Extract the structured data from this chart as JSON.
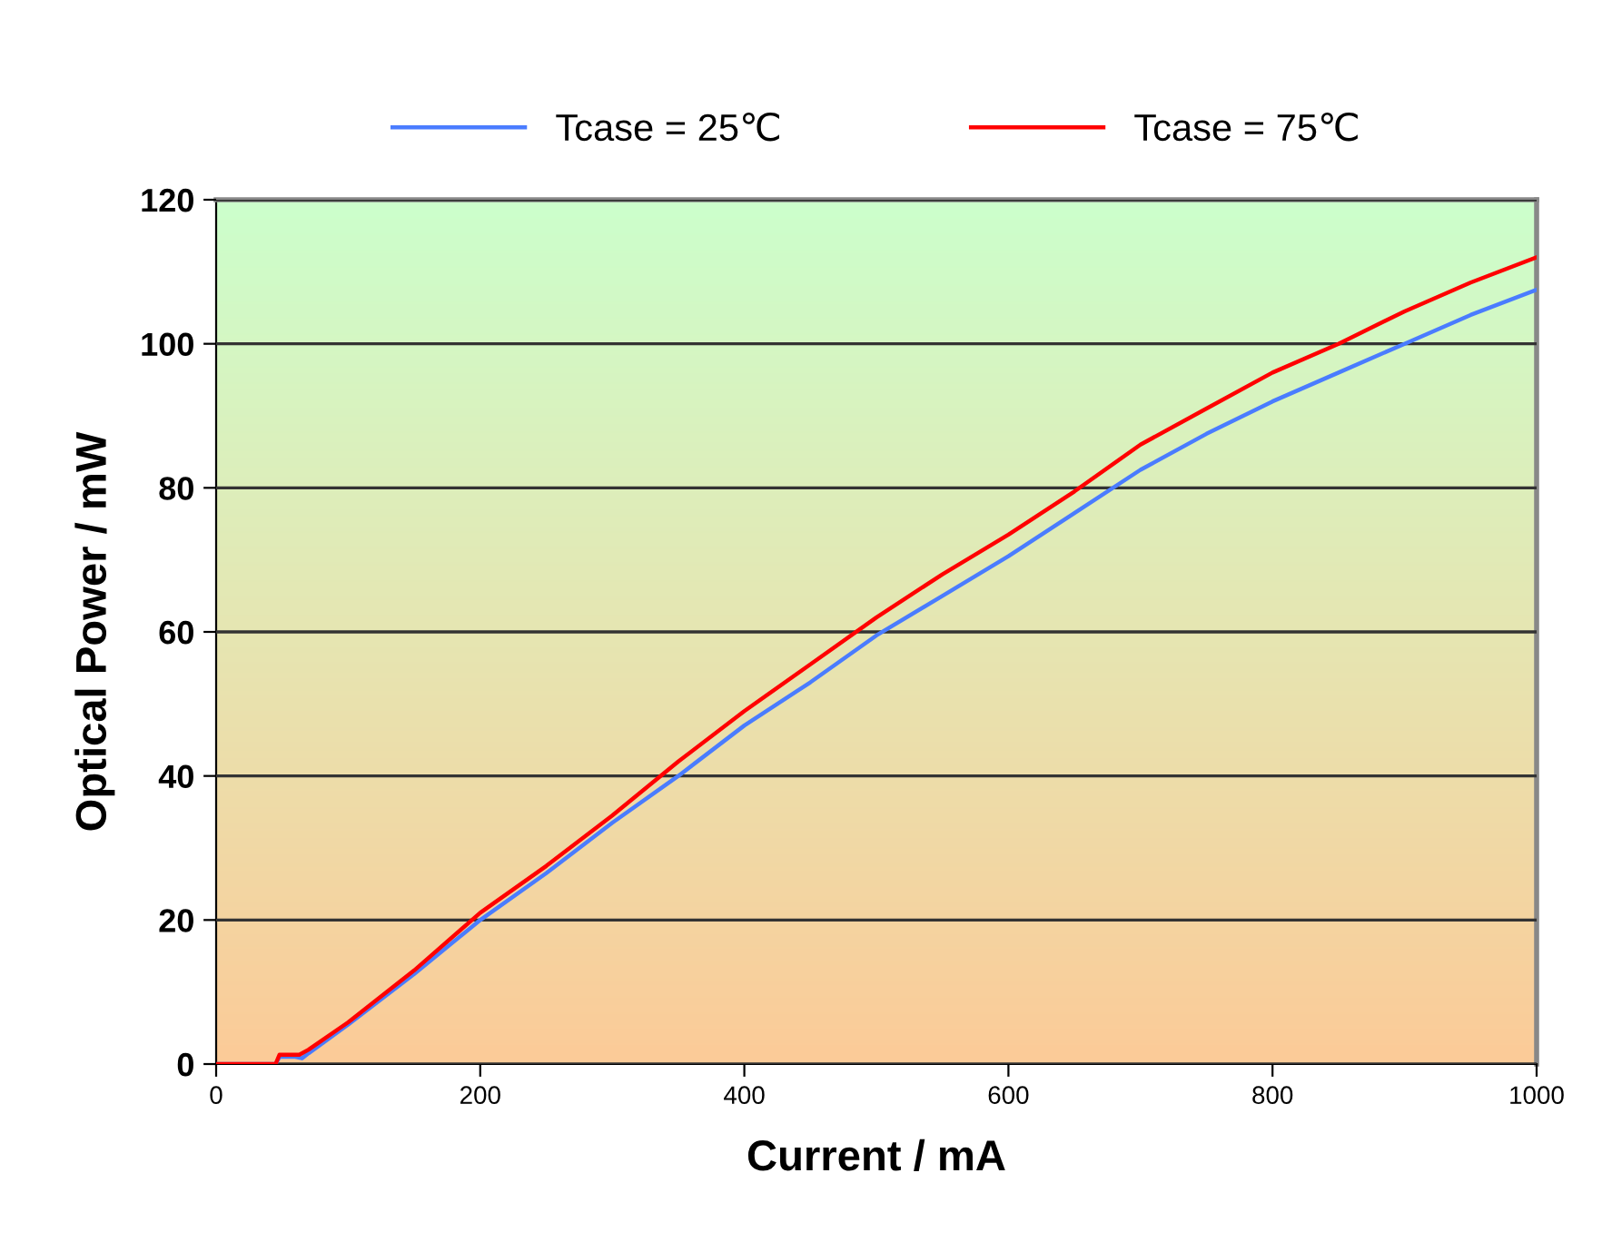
{
  "chart_data": {
    "type": "line",
    "xlabel": "Current / mA",
    "ylabel": "Optical Power / mW",
    "xlim": [
      0,
      1000
    ],
    "xticks": [
      0,
      200,
      400,
      600,
      800,
      1000
    ],
    "ylim": [
      0,
      120
    ],
    "yticks": [
      0,
      20,
      40,
      60,
      80,
      100,
      120
    ],
    "grid": "y",
    "legend": "top",
    "line_style": "solid",
    "marker": "none",
    "series": [
      {
        "name": "Tcase = 25℃",
        "color": "#4a7cff",
        "x": [
          0,
          45,
          48,
          60,
          65,
          70,
          100,
          150,
          200,
          250,
          300,
          350,
          400,
          450,
          500,
          550,
          600,
          650,
          700,
          750,
          800,
          850,
          900,
          950,
          1000
        ],
        "values": [
          0,
          0,
          1,
          1,
          0.8,
          1.5,
          5.5,
          12.5,
          20,
          26.5,
          33.5,
          40,
          47,
          53,
          59.5,
          65,
          70.5,
          76.5,
          82.5,
          87.5,
          92,
          96,
          100,
          104,
          107.5
        ]
      },
      {
        "name": "Tcase = 75℃",
        "color": "#ff0000",
        "x": [
          0,
          45,
          48,
          63,
          70,
          100,
          150,
          200,
          250,
          300,
          350,
          400,
          450,
          500,
          550,
          600,
          650,
          700,
          750,
          800,
          850,
          900,
          950,
          1000
        ],
        "values": [
          0,
          0,
          1.3,
          1.3,
          2,
          5.8,
          13,
          21,
          27.5,
          34.5,
          42,
          49,
          55.5,
          62,
          68,
          73.5,
          79.5,
          86,
          91,
          96,
          100,
          104.5,
          108.5,
          112
        ]
      }
    ]
  }
}
